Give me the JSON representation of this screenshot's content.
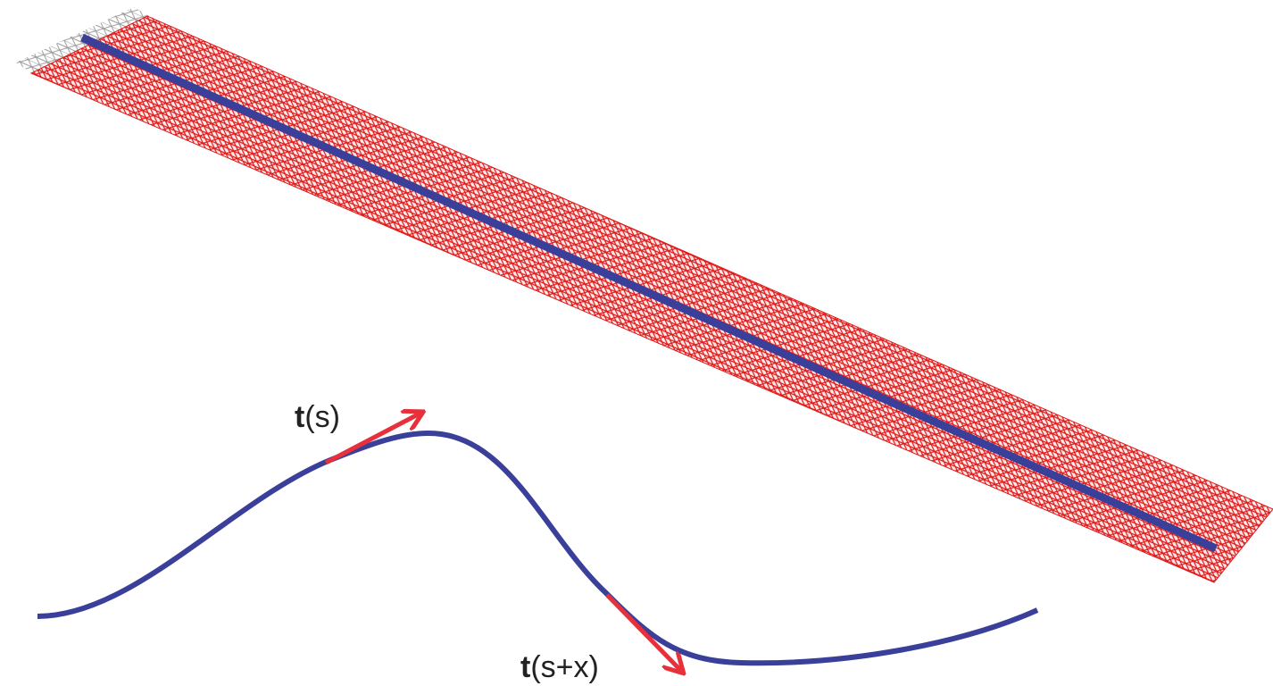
{
  "labels": [
    {
      "symbol": "t",
      "argument": "(s)"
    },
    {
      "symbol": "t",
      "argument": "(s+x)"
    }
  ]
}
